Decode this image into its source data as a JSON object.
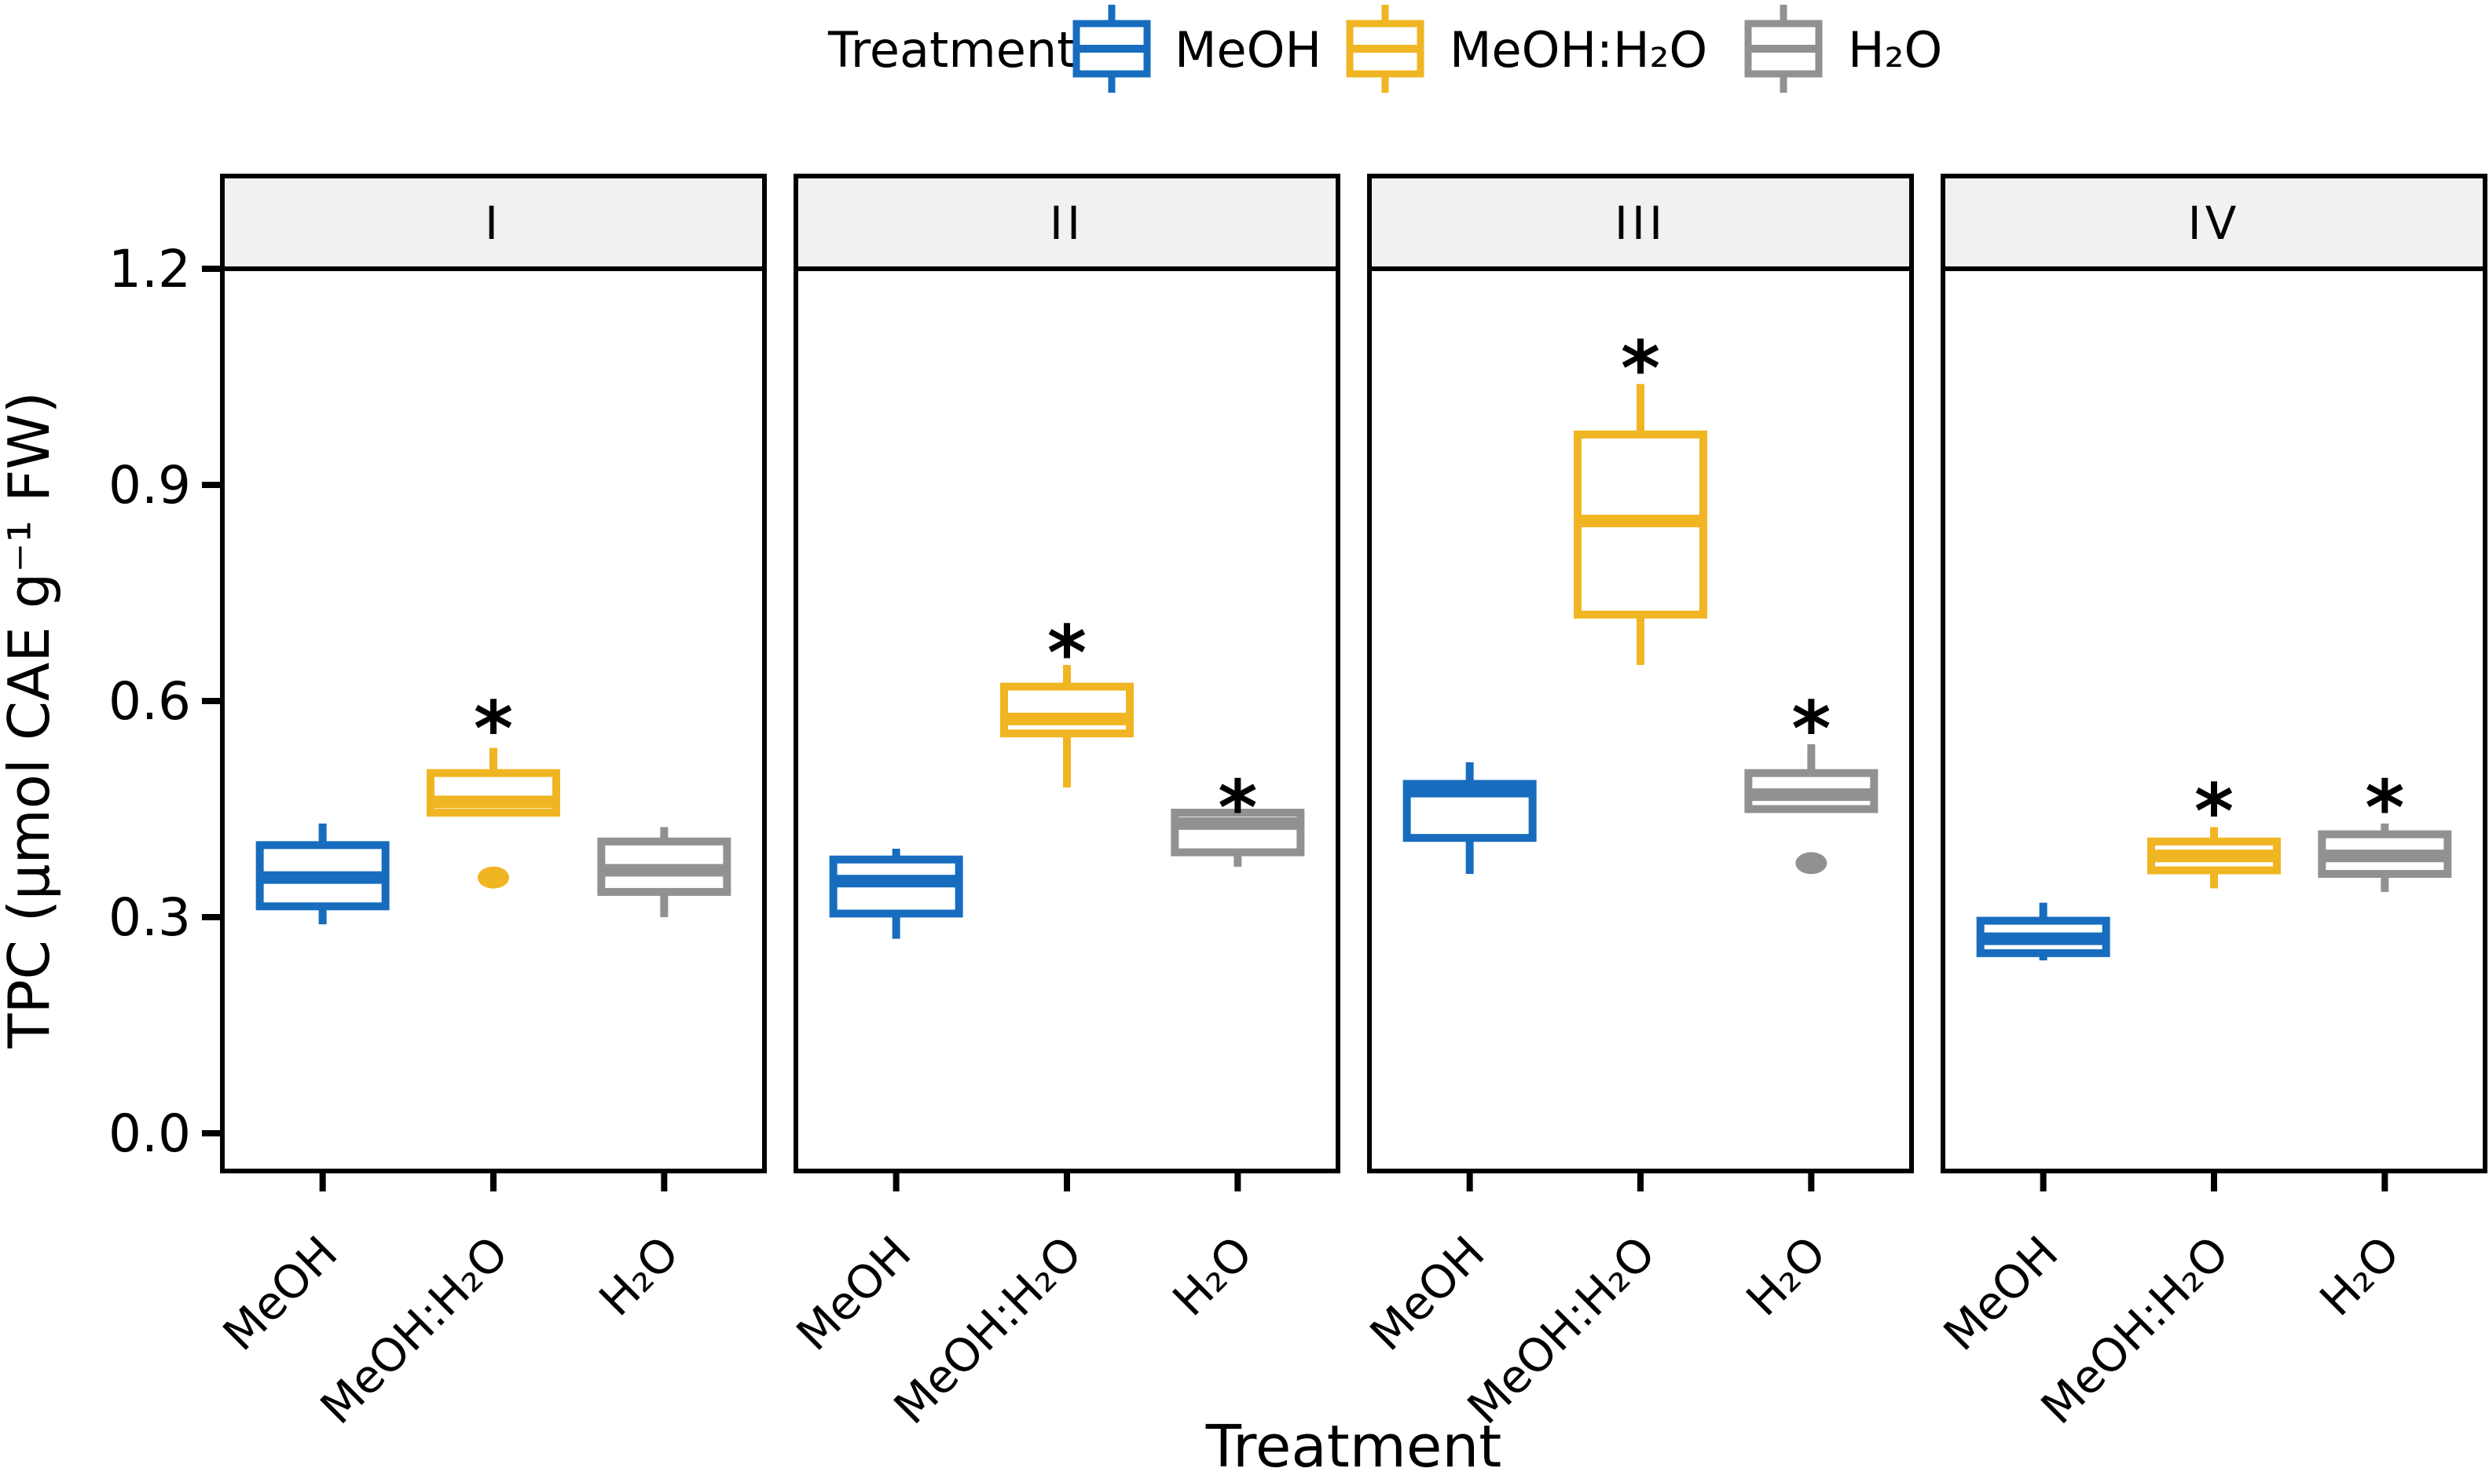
{
  "chart_data": {
    "type": "boxplot",
    "title": "",
    "ylabel": "TPC (μmol CAE g⁻¹ FW)",
    "xlabel": "Treatment",
    "ylim": [
      0,
      1.2
    ],
    "yticks": [
      0,
      0.3,
      0.6,
      0.9,
      1.2
    ],
    "ytick_labels": [
      "0.0",
      "0.3",
      "0.6",
      "0.9",
      "1.2"
    ],
    "categories": [
      "MeOH",
      "MeOH:H₂O",
      "H₂O"
    ],
    "legend": {
      "title": "Treatment",
      "position": "top",
      "entries": [
        {
          "label": "MeOH",
          "color": "#176CBE"
        },
        {
          "label": "MeOH:H₂O",
          "color": "#F0B522"
        },
        {
          "label": "H₂O",
          "color": "#919191"
        }
      ]
    },
    "sig_marker": "*",
    "colors": {
      "strip_fill": "#F1F1F1",
      "panel_border": "#000000",
      "background": "#FFFFFF",
      "text": "#000000"
    },
    "facets": [
      {
        "label": "I",
        "boxes": [
          {
            "treatment": "MeOH",
            "color": "#176CBE",
            "whisker_low": 0.29,
            "q1": 0.315,
            "median": 0.355,
            "q3": 0.4,
            "whisker_high": 0.43,
            "outliers": [],
            "sig": null
          },
          {
            "treatment": "MeOH:H₂O",
            "color": "#F0B522",
            "whisker_low": null,
            "q1": 0.445,
            "median": 0.46,
            "q3": 0.5,
            "whisker_high": 0.535,
            "outliers": [
              0.355
            ],
            "sig": 0.585
          },
          {
            "treatment": "H₂O",
            "color": "#919191",
            "whisker_low": 0.3,
            "q1": 0.335,
            "median": 0.365,
            "q3": 0.405,
            "whisker_high": 0.425,
            "outliers": [],
            "sig": null
          }
        ]
      },
      {
        "label": "II",
        "boxes": [
          {
            "treatment": "MeOH",
            "color": "#176CBE",
            "whisker_low": 0.27,
            "q1": 0.305,
            "median": 0.35,
            "q3": 0.38,
            "whisker_high": 0.395,
            "outliers": [],
            "sig": null
          },
          {
            "treatment": "MeOH:H₂O",
            "color": "#F0B522",
            "whisker_low": 0.48,
            "q1": 0.555,
            "median": 0.575,
            "q3": 0.62,
            "whisker_high": 0.65,
            "outliers": [],
            "sig": 0.69
          },
          {
            "treatment": "H₂O",
            "color": "#919191",
            "whisker_low": 0.37,
            "q1": 0.39,
            "median": 0.43,
            "q3": 0.445,
            "whisker_high": null,
            "outliers": [],
            "sig": 0.475
          }
        ]
      },
      {
        "label": "III",
        "boxes": [
          {
            "treatment": "MeOH",
            "color": "#176CBE",
            "whisker_low": 0.36,
            "q1": 0.41,
            "median": 0.475,
            "q3": 0.485,
            "whisker_high": 0.515,
            "outliers": [],
            "sig": null
          },
          {
            "treatment": "MeOH:H₂O",
            "color": "#F0B522",
            "whisker_low": 0.65,
            "q1": 0.72,
            "median": 0.85,
            "q3": 0.97,
            "whisker_high": 1.04,
            "outliers": [],
            "sig": 1.085
          },
          {
            "treatment": "H₂O",
            "color": "#919191",
            "whisker_low": null,
            "q1": 0.45,
            "median": 0.47,
            "q3": 0.5,
            "whisker_high": 0.54,
            "outliers": [
              0.375
            ],
            "sig": 0.585
          }
        ]
      },
      {
        "label": "IV",
        "boxes": [
          {
            "treatment": "MeOH",
            "color": "#176CBE",
            "whisker_low": 0.24,
            "q1": 0.25,
            "median": 0.27,
            "q3": 0.295,
            "whisker_high": 0.32,
            "outliers": [],
            "sig": null
          },
          {
            "treatment": "MeOH:H₂O",
            "color": "#F0B522",
            "whisker_low": 0.34,
            "q1": 0.365,
            "median": 0.385,
            "q3": 0.405,
            "whisker_high": 0.425,
            "outliers": [],
            "sig": 0.47
          },
          {
            "treatment": "H₂O",
            "color": "#919191",
            "whisker_low": 0.335,
            "q1": 0.36,
            "median": 0.385,
            "q3": 0.415,
            "whisker_high": 0.43,
            "outliers": [],
            "sig": 0.475
          }
        ]
      }
    ]
  }
}
